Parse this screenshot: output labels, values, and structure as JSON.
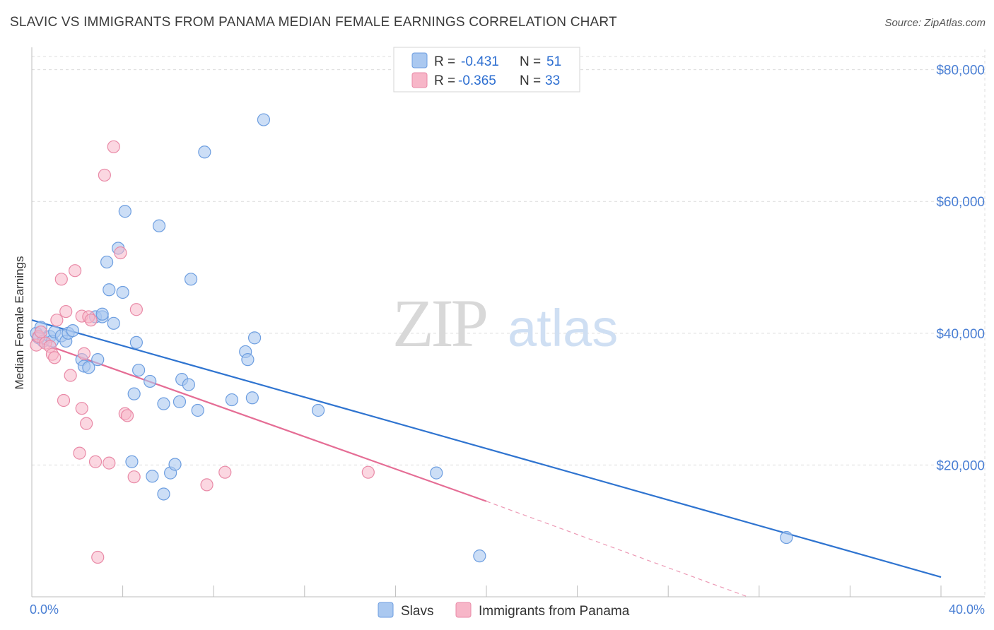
{
  "title": "SLAVIC VS IMMIGRANTS FROM PANAMA MEDIAN FEMALE EARNINGS CORRELATION CHART",
  "source": "Source: ZipAtlas.com",
  "watermark": {
    "zip": "ZIP",
    "atlas": "atlas"
  },
  "colors": {
    "slavs_fill": "#aac8f0",
    "slavs_stroke": "#6d9ee0",
    "slavs_line": "#2f74d0",
    "panama_fill": "#f7b6c8",
    "panama_stroke": "#e98aa7",
    "panama_line": "#e56d95",
    "grid": "#dcdcdc",
    "axis_label": "#4a7fd4"
  },
  "legend": {
    "r_label": "R =",
    "n_label": "N =",
    "series": [
      {
        "r": "-0.431",
        "n": "51"
      },
      {
        "r": "-0.365",
        "n": "33"
      }
    ]
  },
  "chart_data": {
    "type": "scatter",
    "title": "SLAVIC VS IMMIGRANTS FROM PANAMA MEDIAN FEMALE EARNINGS CORRELATION CHART",
    "xlabel": "",
    "ylabel": "Median Female Earnings",
    "xlim": [
      0,
      40
    ],
    "ylim": [
      0,
      82000
    ],
    "x_tick_labels": [
      "0.0%",
      "40.0%"
    ],
    "y_ticks": [
      20000,
      40000,
      60000,
      80000
    ],
    "y_tick_labels": [
      "$20,000",
      "$40,000",
      "$60,000",
      "$80,000"
    ],
    "series": [
      {
        "name": "Slavs",
        "x": [
          0.2,
          0.3,
          0.4,
          0.5,
          0.8,
          0.9,
          1.0,
          1.3,
          1.5,
          1.6,
          1.8,
          2.2,
          2.3,
          2.5,
          2.8,
          2.9,
          3.1,
          3.1,
          3.3,
          3.4,
          3.6,
          3.8,
          4.0,
          4.1,
          4.4,
          4.5,
          4.6,
          4.7,
          5.2,
          5.3,
          5.6,
          5.8,
          5.8,
          6.1,
          6.3,
          6.5,
          6.6,
          6.9,
          7.0,
          7.3,
          7.6,
          8.8,
          9.4,
          9.5,
          9.7,
          9.8,
          10.2,
          12.6,
          19.7,
          33.2,
          17.8
        ],
        "y": [
          40000,
          39300,
          40900,
          38800,
          39500,
          38800,
          40200,
          39600,
          38800,
          40000,
          40400,
          36000,
          35000,
          34800,
          42500,
          36000,
          42500,
          42900,
          50800,
          46600,
          41500,
          52900,
          46200,
          58500,
          20500,
          30800,
          38600,
          34400,
          32700,
          18300,
          56300,
          29300,
          15600,
          18800,
          20100,
          29600,
          33000,
          32200,
          48200,
          28300,
          67500,
          29900,
          37200,
          36000,
          30200,
          39300,
          72400,
          28300,
          6200,
          9000,
          18800
        ]
      },
      {
        "name": "Immigrants from Panama",
        "x": [
          0.2,
          0.3,
          0.4,
          0.6,
          0.8,
          0.9,
          1.0,
          1.1,
          1.3,
          1.4,
          1.5,
          1.7,
          1.9,
          2.1,
          2.2,
          2.2,
          2.3,
          2.4,
          2.5,
          2.6,
          2.8,
          2.9,
          3.2,
          3.4,
          3.6,
          3.9,
          4.1,
          4.2,
          4.5,
          4.6,
          7.7,
          8.5,
          14.8
        ],
        "y": [
          38200,
          39500,
          40200,
          38500,
          38000,
          36800,
          36300,
          42000,
          48200,
          29800,
          43300,
          33600,
          49500,
          21800,
          42600,
          28600,
          36900,
          26300,
          42500,
          42000,
          20500,
          6000,
          64000,
          20300,
          68300,
          52200,
          27800,
          27500,
          18200,
          43600,
          17000,
          18900,
          18900
        ]
      }
    ],
    "trend_lines": [
      {
        "name": "Slavs",
        "x": [
          0,
          40
        ],
        "y": [
          42000,
          3000
        ]
      },
      {
        "name": "Immigrants from Panama",
        "x": [
          0,
          20
        ],
        "y": [
          39000,
          14500
        ],
        "dashed_extension_to": [
          31.5,
          0
        ]
      }
    ],
    "legend_position": "top-center",
    "grid": true
  },
  "bottom_legend": [
    "Slavs",
    "Immigrants from Panama"
  ]
}
